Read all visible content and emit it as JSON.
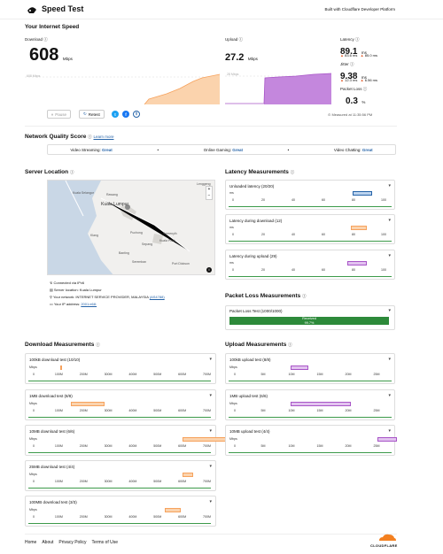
{
  "header": {
    "title": "Speed Test",
    "built_with": "Built with Cloudflare Developer Platform"
  },
  "speed": {
    "title": "Your Internet Speed",
    "download_label": "Download",
    "download_value": "608",
    "download_unit": "Mbps",
    "download_chart_max": "608 Mbps",
    "upload_label": "Upload",
    "upload_value": "27.2",
    "upload_unit": "Mbps",
    "upload_chart_max": "28 Mbps",
    "latency_label": "Latency",
    "latency_value": "89.1",
    "latency_unit": "ms",
    "latency_down": "83.6 ms",
    "latency_up": "85.0 ms",
    "jitter_label": "Jitter",
    "jitter_value": "9.38",
    "jitter_unit": "ms",
    "jitter_down": "12.3 ms",
    "jitter_up": "6.56 ms",
    "loss_label": "Packet Loss",
    "loss_value": "0.3",
    "loss_unit": "%",
    "pause": "Pause",
    "retest": "Retest",
    "measured": "Measured at 11:35:56 PM",
    "colors": {
      "download": "#f6a25d",
      "upload": "#a855c7",
      "up_arrow": "#e35e2d",
      "down_arrow": "#e35e2d"
    }
  },
  "quality": {
    "title": "Network Quality Score",
    "learn_more": "Learn more",
    "items": [
      {
        "label": "Video Streaming:",
        "value": "Great"
      },
      {
        "label": "Online Gaming:",
        "value": "Great"
      },
      {
        "label": "Video Chatting:",
        "value": "Great"
      }
    ]
  },
  "server": {
    "title": "Server Location",
    "map_labels": [
      "Kuala Selangor",
      "Rawang",
      "Kuala Lumpur",
      "Klang",
      "Puchong",
      "Semenyih",
      "Banting",
      "Sepang",
      "Kuala Pilah",
      "Port Dickson",
      "Seremban",
      "Lenggeng"
    ],
    "info": [
      "Connected via IPv6",
      "Server location: Kuala Lumpur",
      "Your network: INTERNET SERVICE PROVIDER, MALAYSIA",
      "Your IP address:"
    ],
    "asn": "(AS4788)",
    "ip": "2001:e68:",
    "zoom_in": "+",
    "zoom_out": "−",
    "info_icon": "i"
  },
  "latency": {
    "title": "Latency Measurements",
    "unit": "ms",
    "axis": [
      "0",
      "20",
      "40",
      "60",
      "80",
      "100"
    ],
    "tests": [
      {
        "label": "Unloaded latency (20/20)"
      },
      {
        "label": "Latency during download (12)"
      },
      {
        "label": "Latency during upload (29)"
      }
    ]
  },
  "loss": {
    "title": "Packet Loss Measurements",
    "test": "Packet Loss Test (1000/1000)",
    "bar_label": "Received",
    "bar_pct": "99.7%",
    "bar_color": "#2d8a3a"
  },
  "download": {
    "title": "Download Measurements",
    "unit": "Mbps",
    "axis": [
      "0",
      "100M",
      "200M",
      "300M",
      "400M",
      "500M",
      "600M",
      "700M"
    ],
    "tests": [
      {
        "label": "100kB download test (10/10)"
      },
      {
        "label": "1MB download test (8/8)"
      },
      {
        "label": "10MB download test (6/6)"
      },
      {
        "label": "25MB download test (4/4)"
      },
      {
        "label": "100MB download test (3/3)"
      }
    ]
  },
  "upload": {
    "title": "Upload Measurements",
    "unit": "Mbps",
    "axis": [
      "0",
      "5M",
      "10M",
      "15M",
      "20M",
      "25M"
    ],
    "tests": [
      {
        "label": "100kB upload test (8/8)"
      },
      {
        "label": "1MB upload test (6/6)"
      },
      {
        "label": "10MB upload test (4/4)"
      }
    ]
  },
  "footer": {
    "links": [
      "Home",
      "About",
      "Privacy Policy",
      "Terms of Use"
    ],
    "logo_text": "CLOUDFLARE"
  }
}
